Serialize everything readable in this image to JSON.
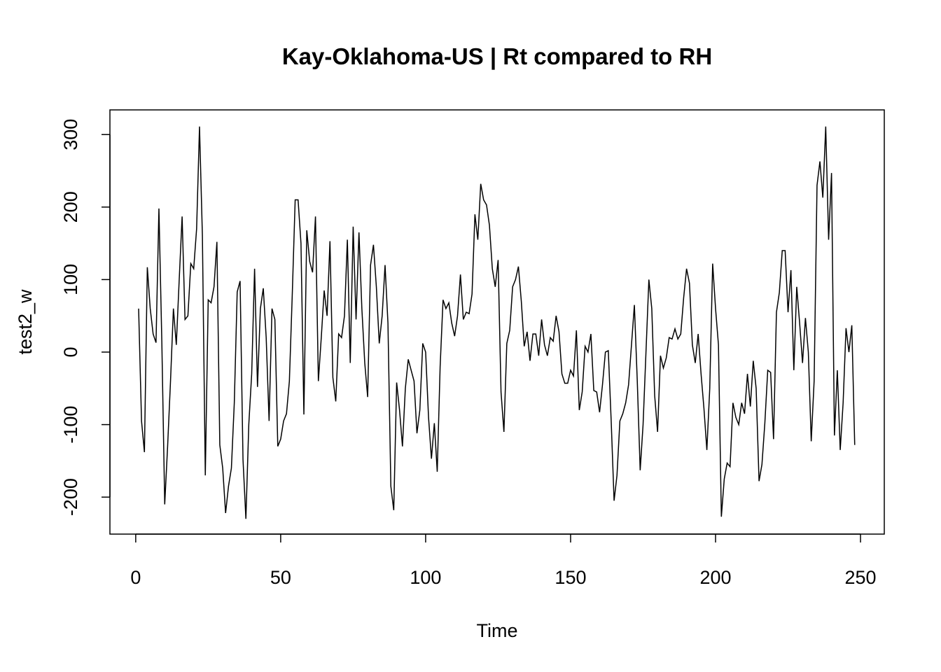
{
  "chart_data": {
    "type": "line",
    "title": "Kay-Oklahoma-US | Rt compared to RH",
    "xlabel": "Time",
    "ylabel": "test2_w",
    "x": [
      1,
      2,
      3,
      4,
      5,
      6,
      7,
      8,
      9,
      10,
      11,
      12,
      13,
      14,
      15,
      16,
      17,
      18,
      19,
      20,
      21,
      22,
      23,
      24,
      25,
      26,
      27,
      28,
      29,
      30,
      31,
      32,
      33,
      34,
      35,
      36,
      37,
      38,
      39,
      40,
      41,
      42,
      43,
      44,
      45,
      46,
      47,
      48,
      49,
      50,
      51,
      52,
      53,
      54,
      55,
      56,
      57,
      58,
      59,
      60,
      61,
      62,
      63,
      64,
      65,
      66,
      67,
      68,
      69,
      70,
      71,
      72,
      73,
      74,
      75,
      76,
      77,
      78,
      79,
      80,
      81,
      82,
      83,
      84,
      85,
      86,
      87,
      88,
      89,
      90,
      91,
      92,
      93,
      94,
      95,
      96,
      97,
      98,
      99,
      100,
      101,
      102,
      103,
      104,
      105,
      106,
      107,
      108,
      109,
      110,
      111,
      112,
      113,
      114,
      115,
      116,
      117,
      118,
      119,
      120,
      121,
      122,
      123,
      124,
      125,
      126,
      127,
      128,
      129,
      130,
      131,
      132,
      133,
      134,
      135,
      136,
      137,
      138,
      139,
      140,
      141,
      142,
      143,
      144,
      145,
      146,
      147,
      148,
      149,
      150,
      151,
      152,
      153,
      154,
      155,
      156,
      157,
      158,
      159,
      160,
      161,
      162,
      163,
      164,
      165,
      166,
      167,
      168,
      169,
      170,
      171,
      172,
      173,
      174,
      175,
      176,
      177,
      178,
      179,
      180,
      181,
      182,
      183,
      184,
      185,
      186,
      187,
      188,
      189,
      190,
      191,
      192,
      193,
      194,
      195,
      196,
      197,
      198,
      199,
      200,
      201,
      202,
      203,
      204,
      205,
      206,
      207,
      208,
      209,
      210,
      211,
      212,
      213,
      214,
      215,
      216,
      217,
      218,
      219,
      220,
      221,
      222,
      223,
      224,
      225,
      226,
      227,
      228,
      229,
      230,
      231,
      232,
      233,
      234,
      235,
      236,
      237,
      238,
      239,
      240,
      241,
      242,
      243,
      244,
      245,
      246,
      247,
      248
    ],
    "series": [
      {
        "name": "test2_w",
        "color": "#000000",
        "values": [
          60,
          -95,
          -138,
          117,
          60,
          25,
          13,
          198,
          15,
          -210,
          -130,
          -40,
          60,
          10,
          100,
          187,
          45,
          50,
          122,
          115,
          170,
          311,
          160,
          -170,
          72,
          68,
          90,
          152,
          -128,
          -160,
          -222,
          -185,
          -160,
          -70,
          83,
          98,
          -148,
          -230,
          -100,
          -30,
          115,
          -48,
          60,
          88,
          20,
          -95,
          60,
          45,
          -130,
          -120,
          -95,
          -85,
          -40,
          80,
          210,
          210,
          150,
          -86,
          168,
          125,
          110,
          187,
          -40,
          20,
          85,
          50,
          153,
          -35,
          -68,
          25,
          20,
          50,
          155,
          -15,
          173,
          45,
          165,
          60,
          -15,
          -62,
          120,
          148,
          90,
          12,
          50,
          120,
          40,
          -185,
          -218,
          -42,
          -80,
          -130,
          -50,
          -10,
          -25,
          -40,
          -112,
          -80,
          12,
          0,
          -90,
          -147,
          -98,
          -165,
          -20,
          72,
          60,
          68,
          40,
          22,
          50,
          107,
          45,
          55,
          53,
          80,
          190,
          155,
          232,
          210,
          203,
          175,
          115,
          90,
          127,
          -55,
          -110,
          12,
          30,
          90,
          100,
          118,
          70,
          8,
          28,
          -12,
          25,
          25,
          -5,
          45,
          10,
          -5,
          20,
          15,
          50,
          28,
          -30,
          -43,
          -43,
          -25,
          -33,
          30,
          -80,
          -55,
          8,
          0,
          25,
          -53,
          -55,
          -83,
          -45,
          0,
          2,
          -95,
          -205,
          -170,
          -95,
          -85,
          -70,
          -45,
          10,
          65,
          -40,
          -163,
          -100,
          0,
          100,
          60,
          -60,
          -110,
          -5,
          -22,
          -8,
          20,
          18,
          32,
          18,
          25,
          75,
          115,
          95,
          10,
          -15,
          25,
          -30,
          -78,
          -135,
          -50,
          122,
          60,
          10,
          -227,
          -175,
          -153,
          -158,
          -70,
          -90,
          -100,
          -70,
          -85,
          -30,
          -75,
          -12,
          -50,
          -178,
          -155,
          -98,
          -25,
          -28,
          -120,
          55,
          82,
          140,
          140,
          55,
          113,
          -25,
          90,
          40,
          -15,
          47,
          0,
          -123,
          -40,
          230,
          263,
          213,
          311,
          155,
          247,
          -115,
          -25,
          -135,
          -70,
          33,
          0,
          37,
          -128
        ]
      }
    ],
    "xlim": [
      -8.9,
      258.2
    ],
    "ylim": [
      -251,
      334
    ],
    "xticks": [
      0,
      50,
      100,
      150,
      200,
      250
    ],
    "yticks": [
      -200,
      -100,
      0,
      100,
      200,
      300
    ]
  }
}
